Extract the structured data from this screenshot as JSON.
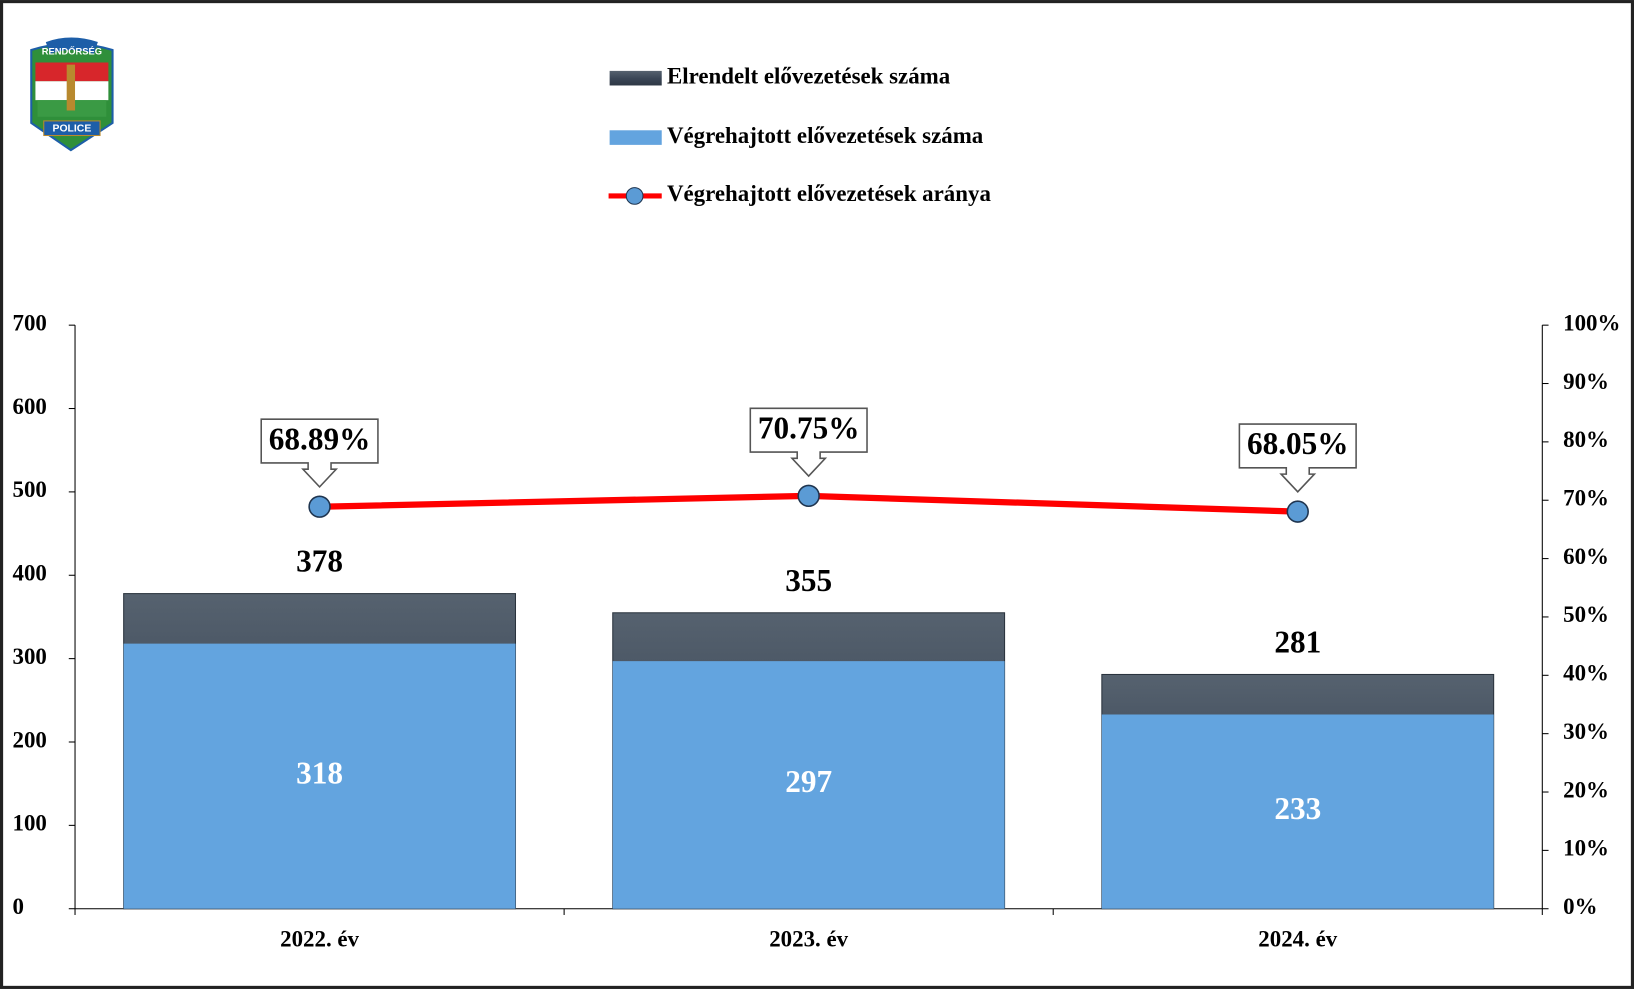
{
  "chart_data": {
    "type": "bar",
    "logo_text": [
      "RENDŐRSÉG",
      "POLICE"
    ],
    "categories": [
      "2022. év",
      "2023. év",
      "2024. év"
    ],
    "series": [
      {
        "name": "Elrendelt elővezetések száma",
        "color": "#3b4757",
        "values": [
          378,
          355,
          281
        ]
      },
      {
        "name": "Végrehajtott elővezetések száma",
        "color": "#63a4df",
        "values": [
          318,
          297,
          233
        ]
      },
      {
        "name": "Végrehajtott elővezetések aránya",
        "type": "line",
        "axis": "y2",
        "color": "#ff0000",
        "marker_color": "#5b9bd5",
        "values": [
          68.89,
          70.75,
          68.05
        ],
        "value_labels": [
          "68.89%",
          "70.75%",
          "68.05%"
        ]
      }
    ],
    "ylim": [
      0,
      700
    ],
    "yticks": [
      0,
      100,
      200,
      300,
      400,
      500,
      600,
      700
    ],
    "y2lim": [
      0,
      100
    ],
    "y2ticks": [
      {
        "value": 0,
        "label": "0%"
      },
      {
        "value": 10,
        "label": "10%"
      },
      {
        "value": 20,
        "label": "20%"
      },
      {
        "value": 30,
        "label": "30%"
      },
      {
        "value": 40,
        "label": "40%"
      },
      {
        "value": 50,
        "label": "50%"
      },
      {
        "value": 60,
        "label": "60%"
      },
      {
        "value": 70,
        "label": "70%"
      },
      {
        "value": 80,
        "label": "80%"
      },
      {
        "value": 90,
        "label": "90%"
      },
      {
        "value": 100,
        "label": "100%"
      }
    ]
  }
}
